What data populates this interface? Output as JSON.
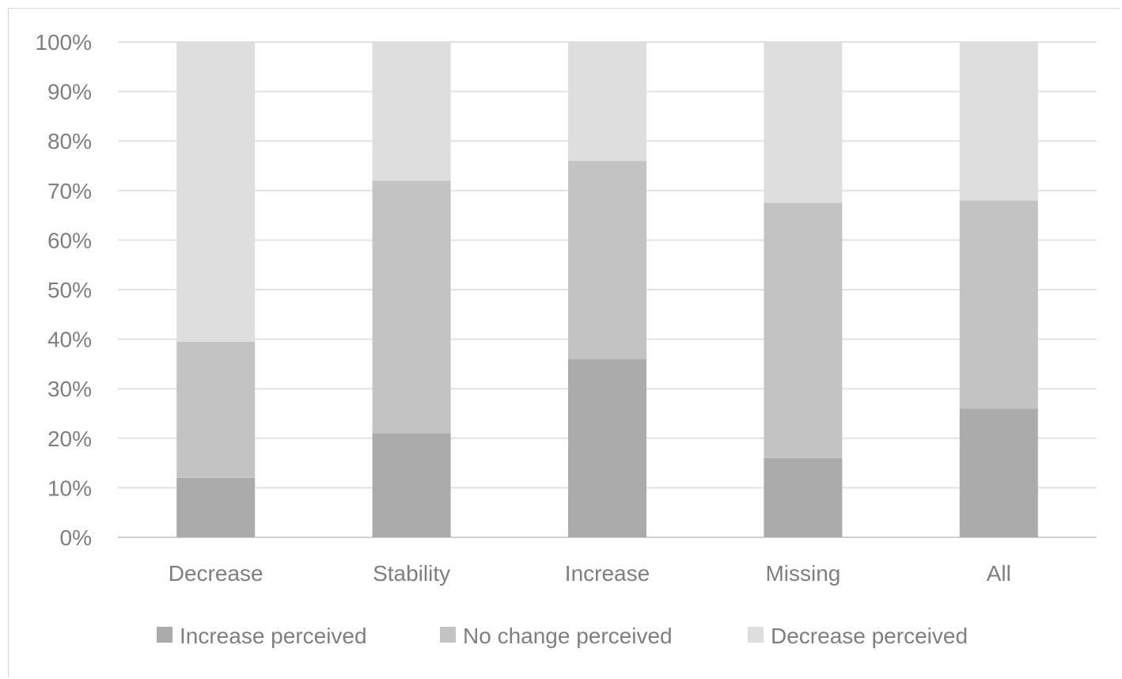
{
  "chart_data": {
    "type": "bar",
    "stacked": "percent",
    "title": "",
    "xlabel": "",
    "ylabel": "",
    "categories": [
      "Decrease",
      "Stability",
      "Increase",
      "Missing",
      "All"
    ],
    "series": [
      {
        "name": "Increase perceived",
        "color": "#ababab",
        "values": [
          12,
          21,
          36,
          16,
          26
        ]
      },
      {
        "name": "No change perceived",
        "color": "#c3c3c3",
        "values": [
          27.5,
          51,
          40,
          51.5,
          42
        ]
      },
      {
        "name": "Decrease perceived",
        "color": "#dedede",
        "values": [
          60.5,
          28,
          24,
          32.5,
          32
        ]
      }
    ],
    "ylim": [
      0,
      100
    ],
    "yticks": [
      "0%",
      "10%",
      "20%",
      "30%",
      "40%",
      "50%",
      "60%",
      "70%",
      "80%",
      "90%",
      "100%"
    ],
    "grid": true,
    "legend_position": "bottom"
  }
}
